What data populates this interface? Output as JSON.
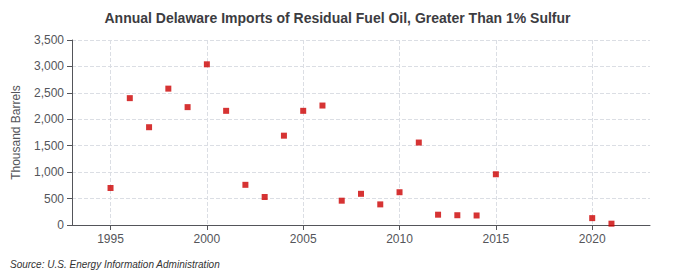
{
  "chart_data": {
    "type": "scatter",
    "title": "Annual Delaware Imports of Residual Fuel Oil, Greater Than 1% Sulfur",
    "ylabel": "Thousand Barrels",
    "annotations": [
      "Source: U.S. Energy Information Administration"
    ],
    "x": [
      1995,
      1996,
      1997,
      1998,
      1999,
      2000,
      2001,
      2002,
      2003,
      2004,
      2005,
      2006,
      2007,
      2008,
      2009,
      2010,
      2011,
      2012,
      2013,
      2014,
      2015,
      2020,
      2021
    ],
    "values": [
      700,
      2400,
      1850,
      2580,
      2230,
      3040,
      2160,
      760,
      530,
      1690,
      2160,
      2260,
      460,
      590,
      390,
      620,
      1560,
      195,
      185,
      180,
      960,
      130,
      25
    ],
    "color": "#cc0000",
    "marker": "square",
    "xlim": [
      1993,
      2023
    ],
    "xticks": [
      1995,
      2000,
      2005,
      2010,
      2015,
      2020
    ],
    "ylim": [
      0,
      3500
    ],
    "yticks": [
      0,
      500,
      {
        "value": 1000,
        "label": "1,000"
      },
      {
        "value": 1500,
        "label": "1,500"
      },
      {
        "value": 2000,
        "label": "2,000"
      },
      {
        "value": 2500,
        "label": "2,500"
      },
      {
        "value": 3000,
        "label": "3,000"
      },
      {
        "value": 3500,
        "label": "3,500"
      }
    ],
    "grid": true
  }
}
